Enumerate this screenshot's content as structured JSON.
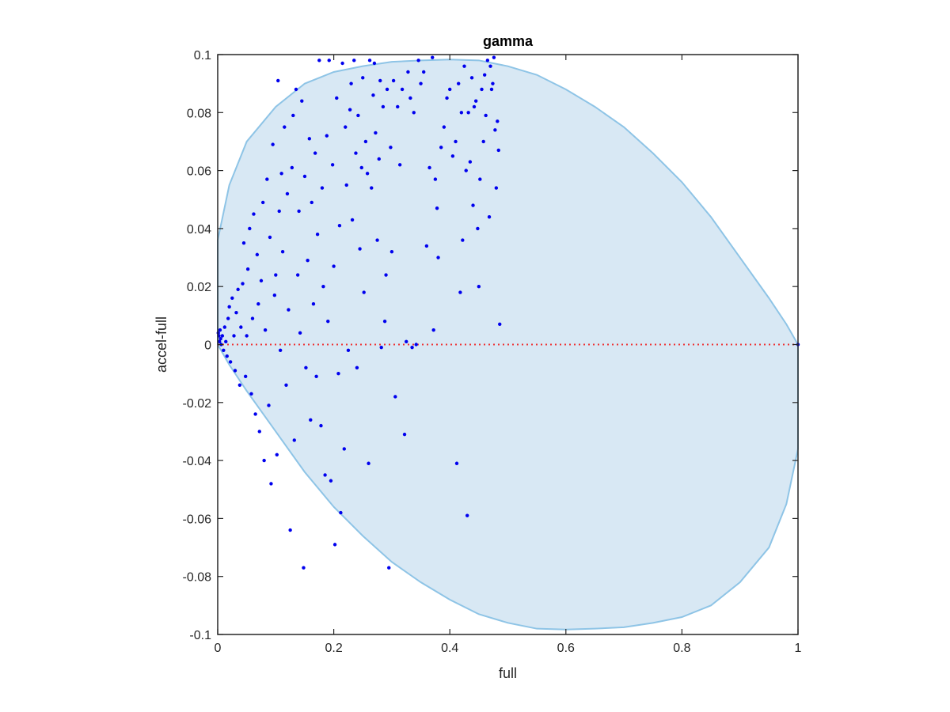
{
  "chart_data": {
    "type": "scatter",
    "title": "gamma",
    "xlabel": "full",
    "ylabel": "accel-full",
    "xlim": [
      0,
      1
    ],
    "ylim": [
      -0.1,
      0.1
    ],
    "x_ticks": [
      0,
      0.2,
      0.4,
      0.6,
      0.8,
      1
    ],
    "x_tick_labels": [
      "0",
      "0.2",
      "0.4",
      "0.6",
      "0.8",
      "1"
    ],
    "y_ticks": [
      -0.1,
      -0.08,
      -0.06,
      -0.04,
      -0.02,
      0,
      0.02,
      0.04,
      0.06,
      0.08,
      0.1
    ],
    "y_tick_labels": [
      "-0.1",
      "-0.08",
      "-0.06",
      "-0.04",
      "-0.02",
      "0",
      "0.02",
      "0.04",
      "0.06",
      "0.08",
      "0.1"
    ],
    "grid": false,
    "colors": {
      "points": "#0000ee",
      "region_fill": "#d8e8f4",
      "region_edge": "#8ec4e6",
      "zero_line": "#ee3333",
      "axes": "#262626"
    },
    "reference_line": {
      "y": 0,
      "style": "dotted"
    },
    "region": {
      "description_shape": "closed-curve",
      "outline": [
        [
          0,
          0
        ],
        [
          0,
          0.036
        ],
        [
          0.02,
          0.055
        ],
        [
          0.05,
          0.07
        ],
        [
          0.1,
          0.082
        ],
        [
          0.15,
          0.09
        ],
        [
          0.2,
          0.094
        ],
        [
          0.25,
          0.096
        ],
        [
          0.3,
          0.0975
        ],
        [
          0.35,
          0.098
        ],
        [
          0.4,
          0.0983
        ],
        [
          0.45,
          0.098
        ],
        [
          0.5,
          0.096
        ],
        [
          0.55,
          0.093
        ],
        [
          0.6,
          0.088
        ],
        [
          0.65,
          0.082
        ],
        [
          0.7,
          0.075
        ],
        [
          0.75,
          0.066
        ],
        [
          0.8,
          0.056
        ],
        [
          0.85,
          0.044
        ],
        [
          0.9,
          0.03
        ],
        [
          0.95,
          0.016
        ],
        [
          0.98,
          0.007
        ],
        [
          1,
          0
        ],
        [
          1,
          -0.036
        ],
        [
          0.98,
          -0.055
        ],
        [
          0.95,
          -0.07
        ],
        [
          0.9,
          -0.082
        ],
        [
          0.85,
          -0.09
        ],
        [
          0.8,
          -0.094
        ],
        [
          0.75,
          -0.096
        ],
        [
          0.7,
          -0.0975
        ],
        [
          0.65,
          -0.098
        ],
        [
          0.6,
          -0.0983
        ],
        [
          0.55,
          -0.098
        ],
        [
          0.5,
          -0.096
        ],
        [
          0.45,
          -0.093
        ],
        [
          0.4,
          -0.088
        ],
        [
          0.35,
          -0.082
        ],
        [
          0.3,
          -0.075
        ],
        [
          0.25,
          -0.066
        ],
        [
          0.2,
          -0.056
        ],
        [
          0.15,
          -0.044
        ],
        [
          0.1,
          -0.03
        ],
        [
          0.05,
          -0.016
        ],
        [
          0.02,
          -0.007
        ],
        [
          0,
          0
        ]
      ]
    },
    "series": [
      {
        "values": [
          [
            0.001,
            0.004
          ],
          [
            0.002,
            0.003
          ],
          [
            0.003,
            0.001
          ],
          [
            0.004,
            0.005
          ],
          [
            0.005,
            0.002
          ],
          [
            0.006,
            0.0
          ],
          [
            0.008,
            0.003
          ],
          [
            0.01,
            -0.002
          ],
          [
            0.012,
            0.006
          ],
          [
            0.014,
            0.001
          ],
          [
            0.016,
            -0.004
          ],
          [
            0.018,
            0.009
          ],
          [
            0.02,
            0.013
          ],
          [
            0.022,
            -0.006
          ],
          [
            0.025,
            0.016
          ],
          [
            0.028,
            0.003
          ],
          [
            0.03,
            -0.009
          ],
          [
            0.032,
            0.011
          ],
          [
            0.035,
            0.019
          ],
          [
            0.038,
            -0.014
          ],
          [
            0.04,
            0.006
          ],
          [
            0.043,
            0.021
          ],
          [
            0.045,
            0.035
          ],
          [
            0.048,
            -0.011
          ],
          [
            0.05,
            0.003
          ],
          [
            0.052,
            0.026
          ],
          [
            0.055,
            0.04
          ],
          [
            0.058,
            -0.017
          ],
          [
            0.06,
            0.009
          ],
          [
            0.062,
            0.045
          ],
          [
            0.065,
            -0.024
          ],
          [
            0.068,
            0.031
          ],
          [
            0.07,
            0.014
          ],
          [
            0.072,
            -0.03
          ],
          [
            0.075,
            0.022
          ],
          [
            0.078,
            0.049
          ],
          [
            0.08,
            -0.04
          ],
          [
            0.082,
            0.005
          ],
          [
            0.085,
            0.057
          ],
          [
            0.088,
            -0.021
          ],
          [
            0.09,
            0.037
          ],
          [
            0.092,
            -0.048
          ],
          [
            0.095,
            0.069
          ],
          [
            0.098,
            0.017
          ],
          [
            0.1,
            0.024
          ],
          [
            0.102,
            -0.038
          ],
          [
            0.104,
            0.091
          ],
          [
            0.106,
            0.046
          ],
          [
            0.108,
            -0.002
          ],
          [
            0.11,
            0.059
          ],
          [
            0.112,
            0.032
          ],
          [
            0.115,
            0.075
          ],
          [
            0.118,
            -0.014
          ],
          [
            0.12,
            0.052
          ],
          [
            0.122,
            0.012
          ],
          [
            0.125,
            -0.064
          ],
          [
            0.128,
            0.061
          ],
          [
            0.13,
            0.079
          ],
          [
            0.132,
            -0.033
          ],
          [
            0.135,
            0.088
          ],
          [
            0.138,
            0.024
          ],
          [
            0.14,
            0.046
          ],
          [
            0.142,
            0.004
          ],
          [
            0.145,
            0.084
          ],
          [
            0.148,
            -0.077
          ],
          [
            0.15,
            0.058
          ],
          [
            0.152,
            -0.008
          ],
          [
            0.155,
            0.029
          ],
          [
            0.158,
            0.071
          ],
          [
            0.16,
            -0.026
          ],
          [
            0.162,
            0.049
          ],
          [
            0.165,
            0.014
          ],
          [
            0.168,
            0.066
          ],
          [
            0.17,
            -0.011
          ],
          [
            0.172,
            0.038
          ],
          [
            0.175,
            0.098
          ],
          [
            0.178,
            -0.028
          ],
          [
            0.18,
            0.054
          ],
          [
            0.182,
            0.02
          ],
          [
            0.185,
            -0.045
          ],
          [
            0.188,
            0.072
          ],
          [
            0.19,
            0.008
          ],
          [
            0.192,
            0.098
          ],
          [
            0.195,
            -0.047
          ],
          [
            0.198,
            0.062
          ],
          [
            0.2,
            0.027
          ],
          [
            0.202,
            -0.069
          ],
          [
            0.205,
            0.085
          ],
          [
            0.208,
            -0.01
          ],
          [
            0.21,
            0.041
          ],
          [
            0.212,
            -0.058
          ],
          [
            0.215,
            0.097
          ],
          [
            0.218,
            -0.036
          ],
          [
            0.22,
            0.075
          ],
          [
            0.222,
            0.055
          ],
          [
            0.225,
            -0.002
          ],
          [
            0.228,
            0.081
          ],
          [
            0.23,
            0.09
          ],
          [
            0.232,
            0.043
          ],
          [
            0.235,
            0.098
          ],
          [
            0.238,
            0.066
          ],
          [
            0.24,
            -0.008
          ],
          [
            0.242,
            0.079
          ],
          [
            0.245,
            0.033
          ],
          [
            0.248,
            0.061
          ],
          [
            0.25,
            0.092
          ],
          [
            0.252,
            0.018
          ],
          [
            0.255,
            0.07
          ],
          [
            0.258,
            0.059
          ],
          [
            0.26,
            -0.041
          ],
          [
            0.262,
            0.098
          ],
          [
            0.265,
            0.054
          ],
          [
            0.268,
            0.086
          ],
          [
            0.27,
            0.097
          ],
          [
            0.272,
            0.073
          ],
          [
            0.275,
            0.036
          ],
          [
            0.278,
            0.064
          ],
          [
            0.28,
            0.091
          ],
          [
            0.282,
            -0.001
          ],
          [
            0.285,
            0.082
          ],
          [
            0.288,
            0.008
          ],
          [
            0.29,
            0.024
          ],
          [
            0.292,
            0.088
          ],
          [
            0.295,
            -0.077
          ],
          [
            0.298,
            0.068
          ],
          [
            0.3,
            0.032
          ],
          [
            0.303,
            0.091
          ],
          [
            0.306,
            -0.018
          ],
          [
            0.31,
            0.082
          ],
          [
            0.314,
            0.062
          ],
          [
            0.318,
            0.088
          ],
          [
            0.322,
            -0.031
          ],
          [
            0.325,
            0.001
          ],
          [
            0.328,
            0.094
          ],
          [
            0.332,
            0.085
          ],
          [
            0.335,
            -0.001
          ],
          [
            0.338,
            0.08
          ],
          [
            0.342,
            0.0
          ],
          [
            0.346,
            0.098
          ],
          [
            0.35,
            0.09
          ],
          [
            0.355,
            0.094
          ],
          [
            0.36,
            0.034
          ],
          [
            0.365,
            0.061
          ],
          [
            0.37,
            0.099
          ],
          [
            0.372,
            0.005
          ],
          [
            0.375,
            0.057
          ],
          [
            0.378,
            0.047
          ],
          [
            0.38,
            0.03
          ],
          [
            0.385,
            0.068
          ],
          [
            0.39,
            0.075
          ],
          [
            0.395,
            0.085
          ],
          [
            0.4,
            0.088
          ],
          [
            0.405,
            0.065
          ],
          [
            0.41,
            0.07
          ],
          [
            0.412,
            -0.041
          ],
          [
            0.415,
            0.09
          ],
          [
            0.418,
            0.018
          ],
          [
            0.42,
            0.08
          ],
          [
            0.422,
            0.036
          ],
          [
            0.425,
            0.096
          ],
          [
            0.428,
            0.06
          ],
          [
            0.43,
            -0.059
          ],
          [
            0.432,
            0.08
          ],
          [
            0.435,
            0.063
          ],
          [
            0.438,
            0.092
          ],
          [
            0.44,
            0.048
          ],
          [
            0.442,
            0.082
          ],
          [
            0.445,
            0.084
          ],
          [
            0.448,
            0.04
          ],
          [
            0.45,
            0.02
          ],
          [
            0.452,
            0.057
          ],
          [
            0.455,
            0.088
          ],
          [
            0.458,
            0.07
          ],
          [
            0.46,
            0.093
          ],
          [
            0.462,
            0.079
          ],
          [
            0.465,
            0.098
          ],
          [
            0.468,
            0.044
          ],
          [
            0.47,
            0.096
          ],
          [
            0.472,
            0.088
          ],
          [
            0.474,
            0.09
          ],
          [
            0.476,
            0.099
          ],
          [
            0.478,
            0.074
          ],
          [
            0.48,
            0.054
          ],
          [
            0.482,
            0.077
          ],
          [
            0.484,
            0.067
          ],
          [
            0.486,
            0.007
          ],
          [
            1,
            0
          ]
        ]
      }
    ]
  }
}
